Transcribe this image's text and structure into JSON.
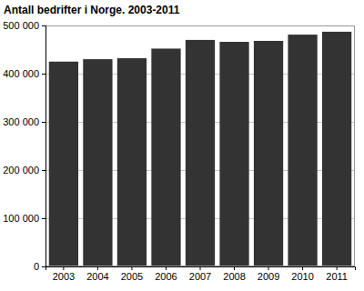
{
  "chart_data": {
    "type": "bar",
    "title": "Antall bedrifter i Norge. 2003-2011",
    "categories": [
      "2003",
      "2004",
      "2005",
      "2006",
      "2007",
      "2008",
      "2009",
      "2010",
      "2011"
    ],
    "values": [
      425000,
      430000,
      432000,
      452000,
      470000,
      466000,
      468000,
      481000,
      487000
    ],
    "color": "#333333",
    "ylim": [
      0,
      500000
    ],
    "yticks": [
      0,
      {
        "value": 100000,
        "label": "100 000"
      },
      {
        "value": 200000,
        "label": "200 000"
      },
      {
        "value": 300000,
        "label": "300 000"
      },
      {
        "value": 400000,
        "label": "400 000"
      },
      {
        "value": 500000,
        "label": "500 000"
      }
    ],
    "grid": true
  }
}
